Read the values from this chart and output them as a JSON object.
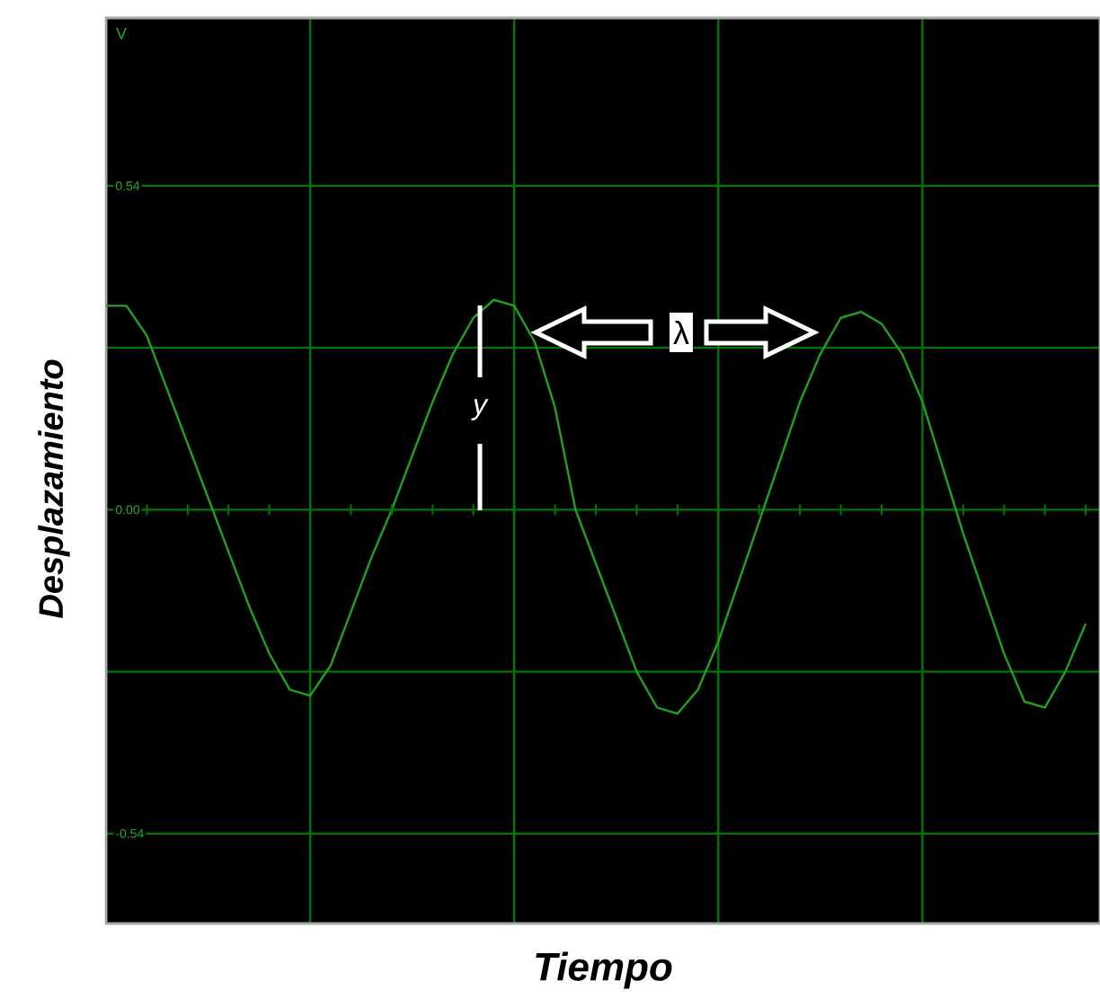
{
  "chart_data": {
    "type": "line",
    "xlabel": "Tiempo",
    "ylabel": "Desplazamiento",
    "categories": [
      null,
      null,
      null,
      null,
      null,
      null,
      null,
      null,
      null,
      null,
      null,
      null,
      null,
      null,
      null,
      null,
      null,
      null,
      null,
      null,
      null,
      null,
      null,
      null,
      null,
      null,
      null,
      null,
      null,
      null,
      null,
      null,
      null,
      null,
      null,
      null,
      null,
      null,
      null,
      null,
      null,
      null,
      null,
      null,
      null,
      null,
      null,
      null,
      null
    ],
    "series": [
      {
        "color": "#22a022",
        "values": [
          0.34,
          0.34,
          0.29,
          0.2,
          0.11,
          0.02,
          -0.07,
          -0.16,
          -0.24,
          -0.3,
          -0.31,
          -0.26,
          -0.17,
          -0.08,
          0.0,
          0.09,
          0.18,
          0.26,
          0.32,
          0.35,
          0.34,
          0.28,
          0.17,
          0.0,
          -0.09,
          -0.18,
          -0.27,
          -0.33,
          -0.34,
          -0.3,
          -0.22,
          -0.12,
          -0.02,
          0.08,
          0.18,
          0.26,
          0.32,
          0.33,
          0.31,
          0.26,
          0.18,
          0.07,
          -0.04,
          -0.14,
          -0.24,
          -0.32,
          -0.33,
          -0.27,
          -0.19
        ]
      }
    ],
    "ylim": [
      -0.69,
      0.82
    ],
    "yticks": [
      {
        "value": 0.54,
        "label": "0.54"
      },
      {
        "value": 0.27,
        "label": null
      },
      {
        "value": 0,
        "label": "0.00"
      },
      {
        "value": -0.27,
        "label": null
      },
      {
        "value": -0.54,
        "label": "-0.54"
      }
    ],
    "grid": true,
    "marker": "none",
    "line_style": "solid",
    "tick_labels": "y",
    "annotations": [
      "V",
      "y",
      "λ"
    ]
  }
}
